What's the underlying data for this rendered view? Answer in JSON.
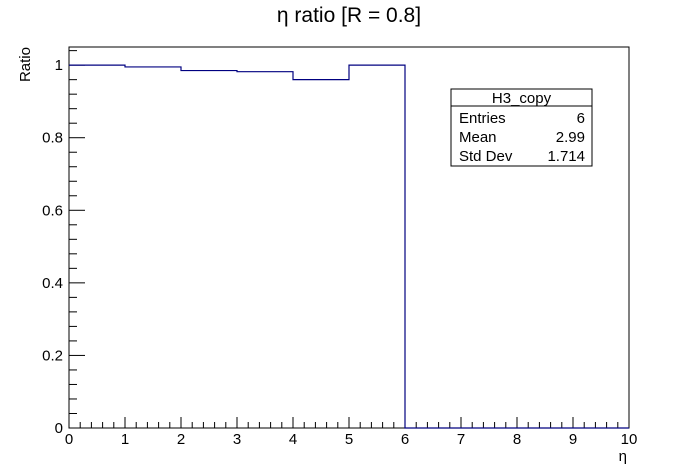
{
  "chart_data": {
    "type": "bar",
    "title": "η ratio [R = 0.8]",
    "xlabel": "η",
    "ylabel": "Ratio",
    "xlim": [
      0,
      10
    ],
    "ylim": [
      0,
      1.05
    ],
    "x_ticks": [
      "0",
      "1",
      "2",
      "3",
      "4",
      "5",
      "6",
      "7",
      "8",
      "9",
      "10"
    ],
    "y_ticks": [
      "0",
      "0.2",
      "0.4",
      "0.6",
      "0.8",
      "1"
    ],
    "bin_edges": [
      0,
      1,
      2,
      3,
      4,
      5,
      6,
      7,
      8,
      9,
      10
    ],
    "values": [
      1.0,
      0.995,
      0.985,
      0.982,
      0.96,
      1.0,
      0,
      0,
      0,
      0
    ],
    "line_color": "#000080",
    "grid": false,
    "stats_box": {
      "title": "H3_copy",
      "rows": [
        {
          "label": "Entries",
          "value": "6"
        },
        {
          "label": "Mean",
          "value": "2.99"
        },
        {
          "label": "Std Dev",
          "value": "1.714"
        }
      ],
      "placement": "top-right"
    }
  }
}
